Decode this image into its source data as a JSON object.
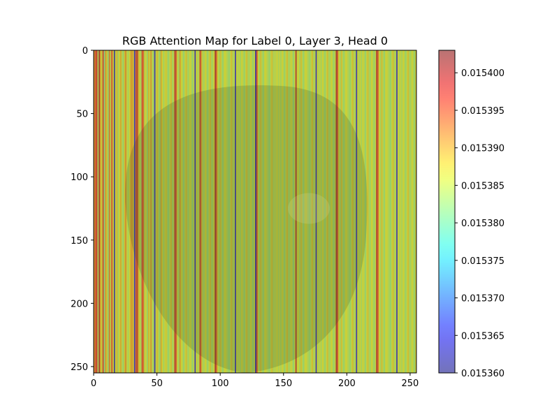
{
  "chart_data": {
    "type": "heatmap",
    "title": "RGB Attention Map for Label 0, Layer 3, Head 0",
    "xlabel": "",
    "ylabel": "",
    "x_range": [
      0,
      255
    ],
    "y_range": [
      0,
      255
    ],
    "x_ticks": [
      0,
      50,
      100,
      150,
      200,
      250
    ],
    "y_ticks": [
      0,
      50,
      100,
      150,
      200,
      250
    ],
    "y_inverted": true,
    "grid": false,
    "colormap": "jet",
    "colorbar": {
      "min": 0.01536,
      "max": 0.015403,
      "ticks": [
        "0.015360",
        "0.015365",
        "0.015370",
        "0.015375",
        "0.015380",
        "0.015385",
        "0.015390",
        "0.015395",
        "0.015400"
      ]
    },
    "column_pattern_note_free": [
      0.75,
      0.82,
      0.9,
      0.55,
      0.95,
      0.7,
      0.6,
      0.88,
      0.5,
      0.72,
      0.65,
      0.52,
      0.78,
      0.58,
      0.85,
      0.62,
      0.05,
      0.6,
      0.68,
      0.55,
      0.62,
      0.7,
      0.58,
      0.52,
      0.66,
      0.74,
      0.6,
      0.55,
      0.62,
      0.7,
      0.72,
      0.65,
      0.1,
      0.8,
      0.93,
      0.7,
      0.6,
      0.55,
      0.85,
      0.78,
      0.58,
      0.62,
      0.52,
      0.68,
      0.6,
      0.72,
      0.58,
      0.55,
      0.08,
      0.6,
      0.66,
      0.58,
      0.52,
      0.7,
      0.62,
      0.55,
      0.6,
      0.64,
      0.56,
      0.52,
      0.6,
      0.66,
      0.55,
      0.58,
      0.92,
      0.8,
      0.6,
      0.55,
      0.72,
      0.62,
      0.58,
      0.52,
      0.6,
      0.66,
      0.56,
      0.55,
      0.62,
      0.58,
      0.52,
      0.6,
      0.08,
      0.62,
      0.56,
      0.6,
      0.9,
      0.7,
      0.58,
      0.55,
      0.62,
      0.58,
      0.52,
      0.6,
      0.66,
      0.56,
      0.55,
      0.62,
      0.95,
      0.8,
      0.62,
      0.55,
      0.66,
      0.58,
      0.52,
      0.6,
      0.62,
      0.58,
      0.55,
      0.52,
      0.6,
      0.66,
      0.56,
      0.58,
      0.08,
      0.62,
      0.56,
      0.6,
      0.55,
      0.62,
      0.58,
      0.52,
      0.6,
      0.66,
      0.56,
      0.55,
      0.62,
      0.58,
      0.52,
      0.6,
      0.06,
      0.85,
      0.62,
      0.55,
      0.66,
      0.58,
      0.52,
      0.6,
      0.62,
      0.58,
      0.55,
      0.52,
      0.6,
      0.66,
      0.56,
      0.58,
      0.58,
      0.62,
      0.56,
      0.6,
      0.55,
      0.62,
      0.58,
      0.52,
      0.6,
      0.66,
      0.56,
      0.55,
      0.62,
      0.58,
      0.52,
      0.6,
      0.93,
      0.6,
      0.62,
      0.55,
      0.66,
      0.58,
      0.52,
      0.6,
      0.62,
      0.58,
      0.55,
      0.52,
      0.6,
      0.66,
      0.56,
      0.58,
      0.08,
      0.62,
      0.56,
      0.6,
      0.55,
      0.62,
      0.58,
      0.52,
      0.6,
      0.66,
      0.56,
      0.55,
      0.62,
      0.58,
      0.52,
      0.6,
      0.95,
      0.82,
      0.62,
      0.55,
      0.66,
      0.58,
      0.52,
      0.6,
      0.62,
      0.58,
      0.55,
      0.52,
      0.6,
      0.66,
      0.56,
      0.58,
      0.08,
      0.62,
      0.56,
      0.6,
      0.55,
      0.62,
      0.58,
      0.52,
      0.6,
      0.66,
      0.56,
      0.55,
      0.62,
      0.58,
      0.52,
      0.6,
      0.93,
      0.82,
      0.62,
      0.55,
      0.66,
      0.58,
      0.52,
      0.6,
      0.62,
      0.58,
      0.55,
      0.52,
      0.6,
      0.66,
      0.56,
      0.58,
      0.08,
      0.62,
      0.56,
      0.6,
      0.55,
      0.62,
      0.58,
      0.52,
      0.6,
      0.66,
      0.56,
      0.55,
      0.62,
      0.58,
      0.52,
      0.65
    ]
  }
}
